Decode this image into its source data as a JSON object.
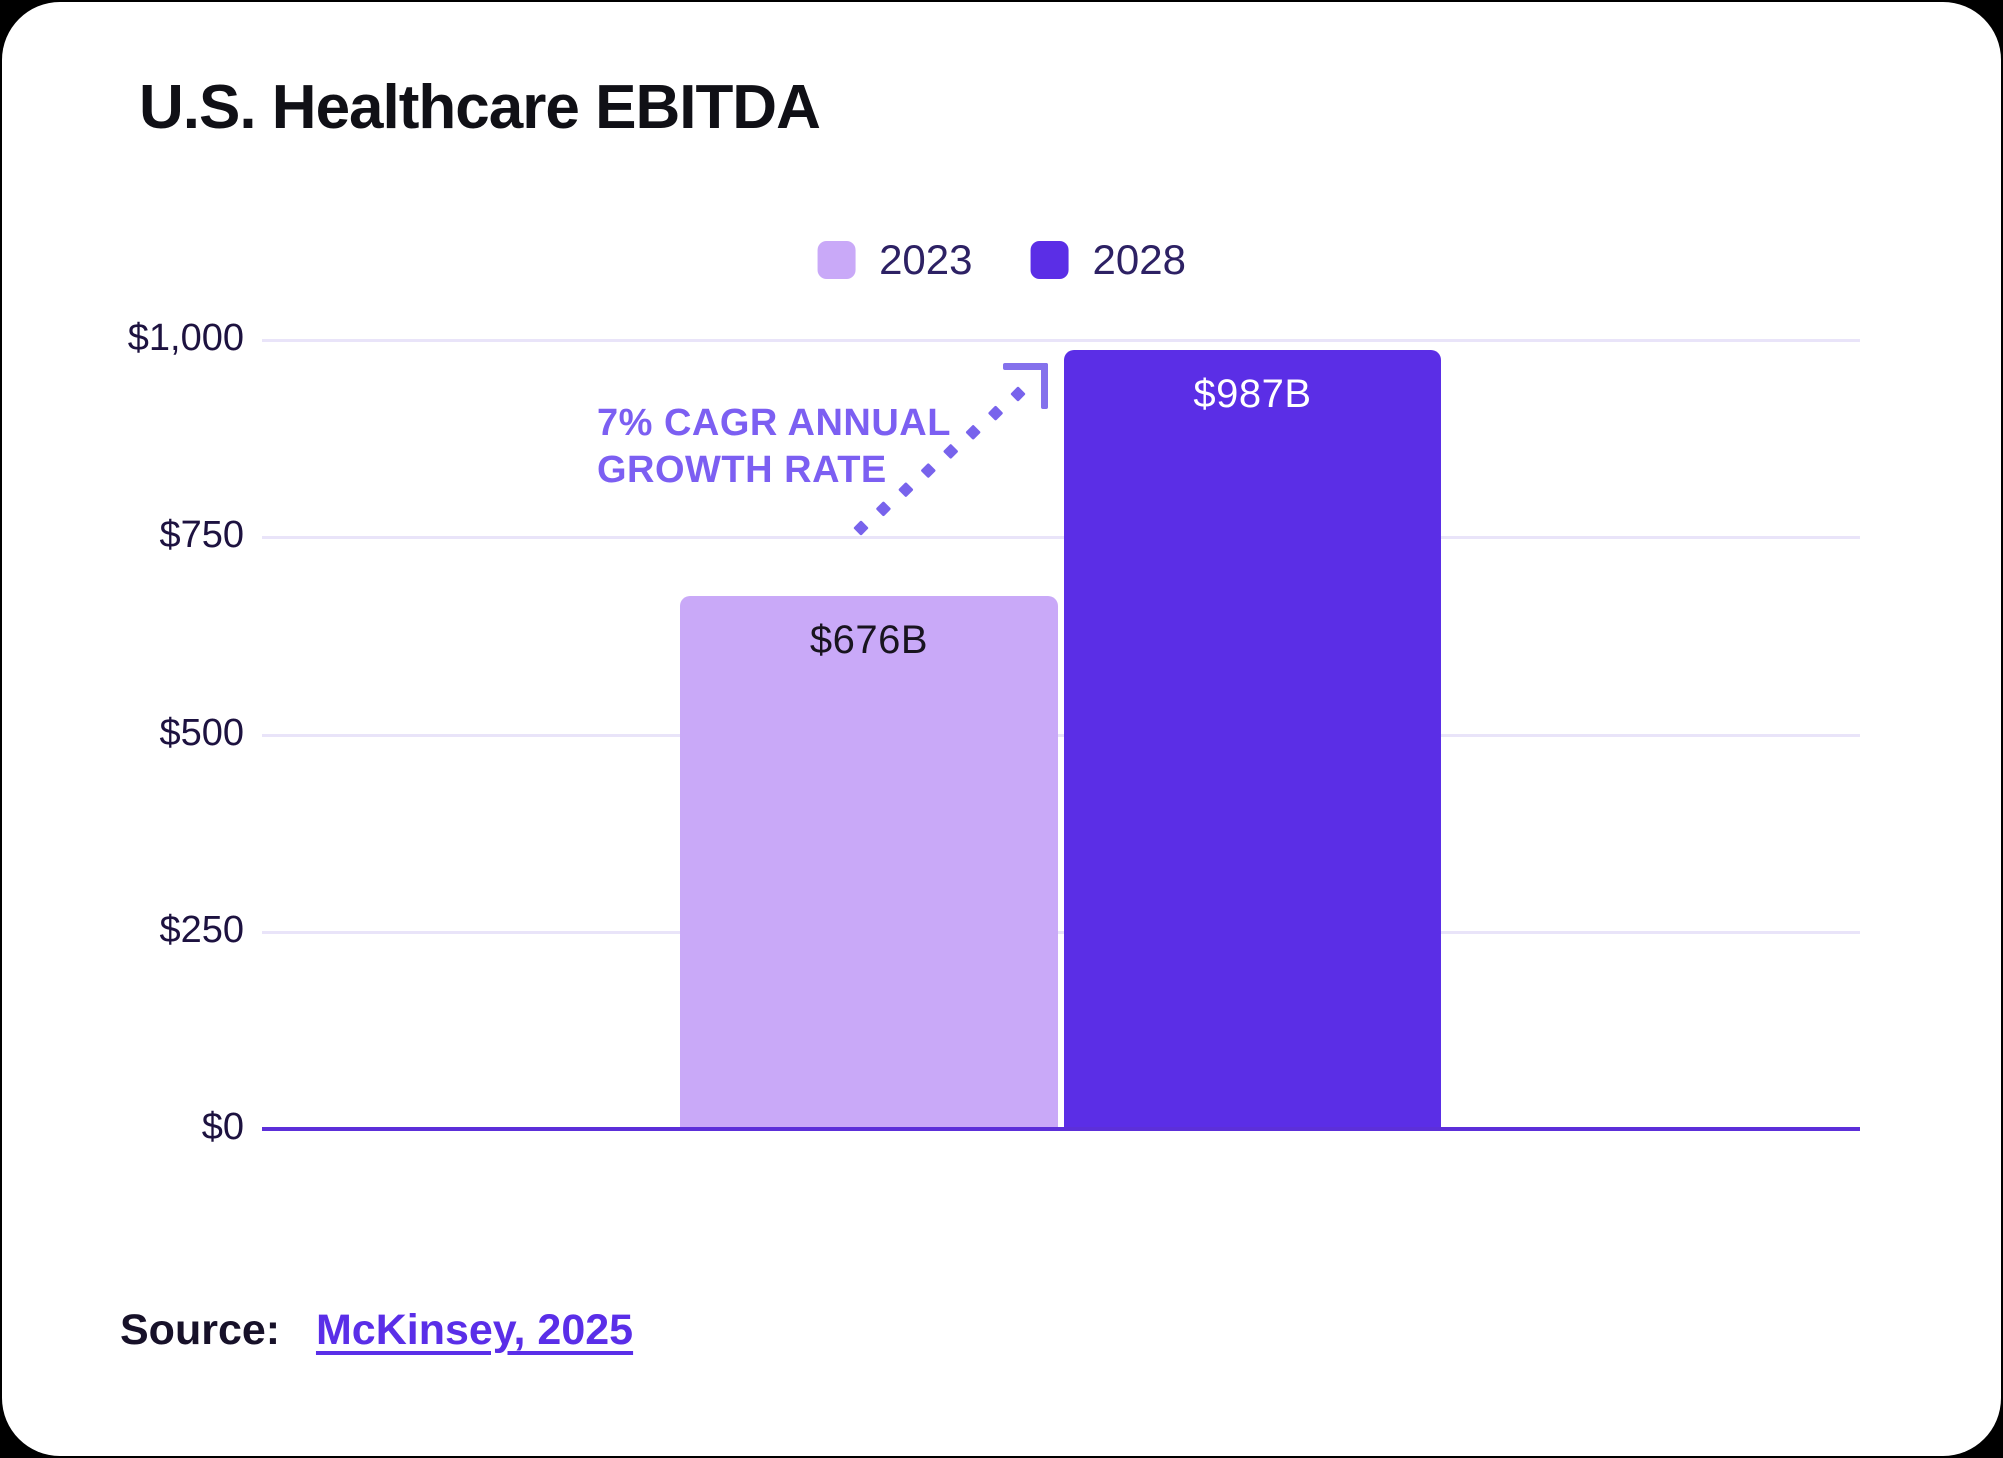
{
  "page_title": "U.S. Healthcare EBITDA",
  "chart_data": {
    "type": "bar",
    "title": "U.S. Healthcare EBITDA",
    "categories": [
      "2023",
      "2028"
    ],
    "series": [
      {
        "name": "2023",
        "value": 676,
        "label": "$676B",
        "color": "#c9a9f8"
      },
      {
        "name": "2028",
        "value": 987,
        "label": "$987B",
        "color": "#5b2ee6"
      }
    ],
    "xlabel": "",
    "ylabel": "",
    "ylim": [
      0,
      1000
    ],
    "yticks": [
      {
        "value": 1000,
        "label": "$1,000"
      },
      {
        "value": 750,
        "label": "$750"
      },
      {
        "value": 500,
        "label": "$500"
      },
      {
        "value": 250,
        "label": "$250"
      },
      {
        "value": 0,
        "label": "$0"
      }
    ],
    "grid": true,
    "legend_position": "top",
    "annotation": {
      "line1": "7% CAGR ANNUAL",
      "line2": "GROWTH RATE",
      "arrow_icon": "dotted-diagonal-arrow-up-right"
    }
  },
  "source": {
    "prefix": "Source:",
    "link_text": "McKinsey, 2025"
  },
  "colors": {
    "background": "#000000",
    "card": "#ffffff",
    "bar_2023": "#c9a9f8",
    "bar_2028": "#5b2ee6",
    "gridline": "#e9e4f9",
    "axis_line": "#5c2fd9",
    "annotation_purple": "#7c5ff2",
    "link_purple": "#5a2ee8",
    "tick_text": "#1d1240",
    "legend_text": "#2d2164"
  }
}
